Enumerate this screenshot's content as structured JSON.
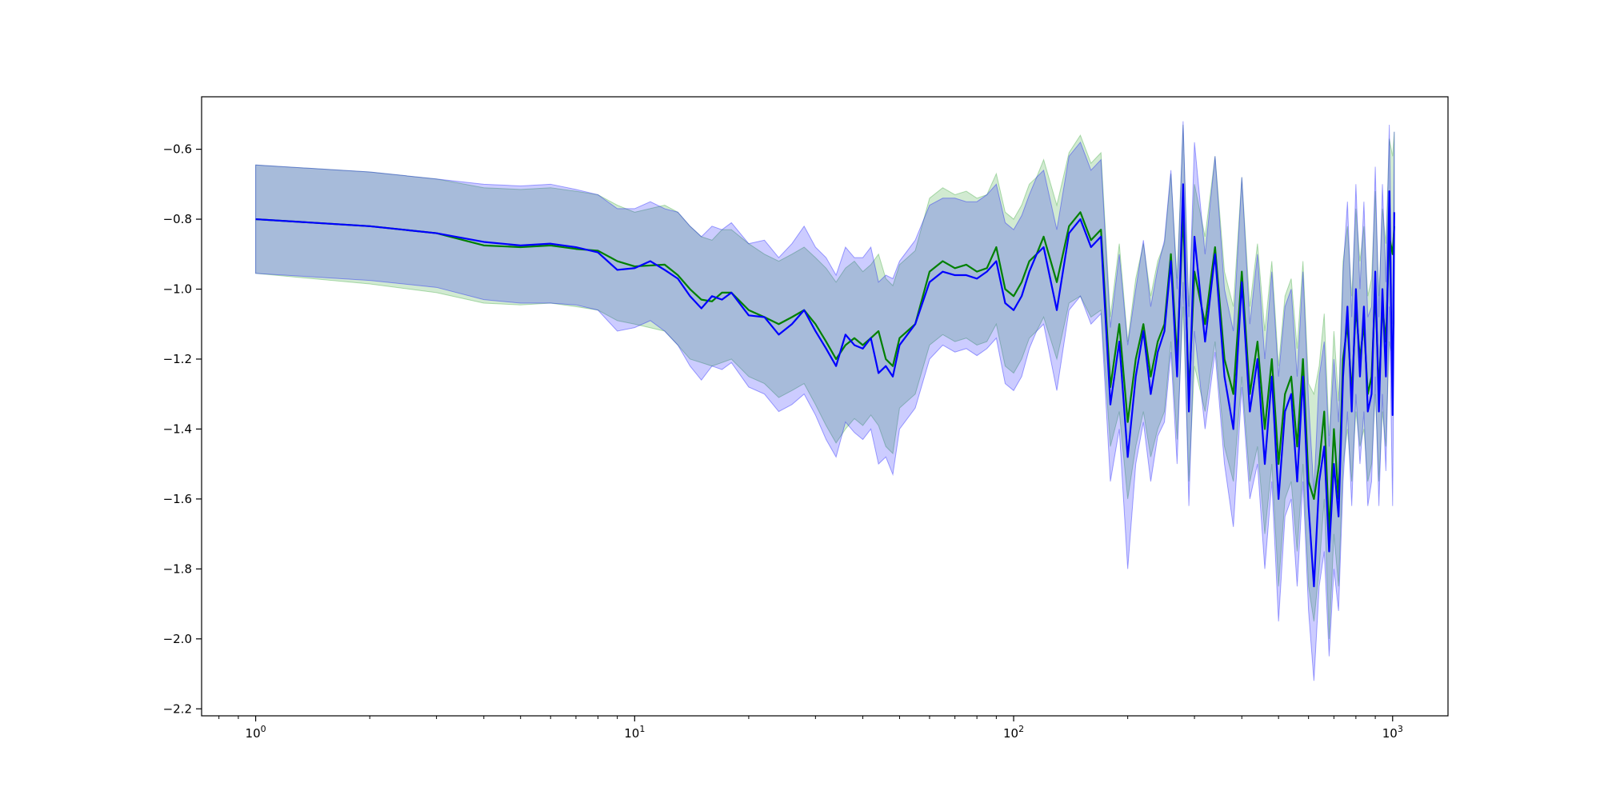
{
  "chart_data": {
    "type": "line",
    "title": "",
    "xlabel": "",
    "ylabel": "",
    "x_scale": "log",
    "xlim": [
      0.72,
      1400
    ],
    "ylim": [
      -2.22,
      -0.45
    ],
    "grid": false,
    "x_ticks": [
      {
        "value": 1,
        "base": "10",
        "exp": "0"
      },
      {
        "value": 10,
        "base": "10",
        "exp": "1"
      },
      {
        "value": 100,
        "base": "10",
        "exp": "2"
      },
      {
        "value": 1000,
        "base": "10",
        "exp": "3"
      }
    ],
    "y_ticks": [
      {
        "value": -0.6,
        "label": "−0.6"
      },
      {
        "value": -0.8,
        "label": "−0.8"
      },
      {
        "value": -1.0,
        "label": "−1.0"
      },
      {
        "value": -1.2,
        "label": "−1.2"
      },
      {
        "value": -1.4,
        "label": "−1.4"
      },
      {
        "value": -1.6,
        "label": "−1.6"
      },
      {
        "value": -1.8,
        "label": "−1.8"
      },
      {
        "value": -2.0,
        "label": "−2.0"
      },
      {
        "value": -2.2,
        "label": "−2.2"
      }
    ],
    "series": [
      {
        "color": "#008000",
        "band_color": "#2ca02c",
        "x": [
          1,
          2,
          3,
          4,
          5,
          6,
          7,
          8,
          9,
          10,
          12,
          13,
          14,
          15,
          16,
          17,
          18,
          20,
          22,
          24,
          26,
          28,
          30,
          32,
          34,
          36,
          38,
          40,
          42,
          44,
          46,
          48,
          50,
          55,
          60,
          65,
          70,
          75,
          80,
          85,
          90,
          95,
          100,
          105,
          110,
          115,
          120,
          130,
          140,
          150,
          160,
          170,
          180,
          190,
          200,
          210,
          220,
          230,
          240,
          250,
          260,
          270,
          280,
          290,
          300,
          320,
          340,
          360,
          380,
          400,
          420,
          440,
          460,
          480,
          500,
          520,
          540,
          560,
          580,
          600,
          620,
          640,
          660,
          680,
          700,
          720,
          740,
          760,
          780,
          800,
          820,
          840,
          860,
          880,
          900,
          920,
          940,
          960,
          980,
          1000,
          1010
        ],
        "mean": [
          -0.8,
          -0.82,
          -0.84,
          -0.875,
          -0.88,
          -0.875,
          -0.885,
          -0.89,
          -0.92,
          -0.935,
          -0.93,
          -0.96,
          -1.0,
          -1.03,
          -1.035,
          -1.01,
          -1.01,
          -1.06,
          -1.08,
          -1.1,
          -1.08,
          -1.06,
          -1.1,
          -1.15,
          -1.2,
          -1.16,
          -1.14,
          -1.16,
          -1.14,
          -1.12,
          -1.2,
          -1.22,
          -1.14,
          -1.1,
          -0.95,
          -0.92,
          -0.94,
          -0.93,
          -0.95,
          -0.94,
          -0.88,
          -1.0,
          -1.02,
          -0.98,
          -0.92,
          -0.9,
          -0.85,
          -0.98,
          -0.82,
          -0.78,
          -0.86,
          -0.83,
          -1.28,
          -1.1,
          -1.38,
          -1.2,
          -1.1,
          -1.25,
          -1.15,
          -1.1,
          -0.9,
          -1.2,
          -0.78,
          -1.3,
          -0.95,
          -1.1,
          -0.88,
          -1.2,
          -1.3,
          -0.95,
          -1.3,
          -1.15,
          -1.4,
          -1.2,
          -1.5,
          -1.3,
          -1.25,
          -1.45,
          -1.2,
          -1.55,
          -1.6,
          -1.5,
          -1.35,
          -1.7,
          -1.4,
          -1.6,
          -1.2,
          -1.1,
          -1.3,
          -1.05,
          -1.2,
          -1.1,
          -1.3,
          -1.25,
          -1.0,
          -1.3,
          -1.05,
          -1.15,
          -0.85,
          -0.9,
          -0.82
        ],
        "lower": [
          -0.955,
          -0.985,
          -1.01,
          -1.04,
          -1.045,
          -1.04,
          -1.05,
          -1.06,
          -1.09,
          -1.1,
          -1.12,
          -1.16,
          -1.2,
          -1.21,
          -1.22,
          -1.21,
          -1.2,
          -1.25,
          -1.27,
          -1.31,
          -1.29,
          -1.27,
          -1.33,
          -1.39,
          -1.44,
          -1.4,
          -1.37,
          -1.39,
          -1.36,
          -1.39,
          -1.45,
          -1.47,
          -1.34,
          -1.3,
          -1.16,
          -1.13,
          -1.15,
          -1.14,
          -1.16,
          -1.15,
          -1.1,
          -1.22,
          -1.24,
          -1.2,
          -1.14,
          -1.12,
          -1.08,
          -1.2,
          -1.04,
          -1.02,
          -1.08,
          -1.06,
          -1.45,
          -1.35,
          -1.6,
          -1.45,
          -1.35,
          -1.48,
          -1.4,
          -1.35,
          -1.15,
          -1.43,
          -1.05,
          -1.55,
          -1.22,
          -1.35,
          -1.15,
          -1.45,
          -1.55,
          -1.25,
          -1.55,
          -1.45,
          -1.7,
          -1.5,
          -1.85,
          -1.6,
          -1.55,
          -1.75,
          -1.5,
          -1.85,
          -1.95,
          -1.8,
          -1.6,
          -2.0,
          -1.7,
          -1.85,
          -1.5,
          -1.4,
          -1.55,
          -1.35,
          -1.45,
          -1.4,
          -1.55,
          -1.5,
          -1.3,
          -1.55,
          -1.35,
          -1.45,
          -1.15,
          -1.2,
          -1.1
        ],
        "upper": [
          -0.645,
          -0.665,
          -0.685,
          -0.71,
          -0.715,
          -0.71,
          -0.72,
          -0.73,
          -0.76,
          -0.78,
          -0.76,
          -0.78,
          -0.82,
          -0.85,
          -0.86,
          -0.83,
          -0.83,
          -0.87,
          -0.9,
          -0.92,
          -0.9,
          -0.88,
          -0.91,
          -0.94,
          -0.98,
          -0.94,
          -0.92,
          -0.95,
          -0.93,
          -0.9,
          -0.97,
          -0.99,
          -0.93,
          -0.89,
          -0.74,
          -0.71,
          -0.73,
          -0.72,
          -0.74,
          -0.73,
          -0.67,
          -0.78,
          -0.8,
          -0.76,
          -0.7,
          -0.68,
          -0.63,
          -0.76,
          -0.61,
          -0.56,
          -0.64,
          -0.61,
          -1.08,
          -0.87,
          -1.15,
          -0.97,
          -0.87,
          -1.02,
          -0.92,
          -0.87,
          -0.67,
          -0.97,
          -0.53,
          -1.05,
          -0.7,
          -0.85,
          -0.62,
          -0.95,
          -1.05,
          -0.68,
          -1.05,
          -0.87,
          -1.12,
          -0.92,
          -1.22,
          -1.02,
          -0.97,
          -1.17,
          -0.92,
          -1.27,
          -1.3,
          -1.22,
          -1.07,
          -1.42,
          -1.12,
          -1.32,
          -0.92,
          -0.82,
          -1.02,
          -0.77,
          -0.92,
          -0.82,
          -1.02,
          -0.97,
          -0.72,
          -1.02,
          -0.77,
          -0.87,
          -0.57,
          -0.62,
          -0.55
        ]
      },
      {
        "color": "#0000ff",
        "band_color": "#0000ff",
        "x": [
          1,
          2,
          3,
          4,
          5,
          6,
          7,
          8,
          9,
          10,
          11,
          12,
          13,
          14,
          15,
          16,
          17,
          18,
          20,
          22,
          24,
          26,
          28,
          30,
          32,
          34,
          36,
          38,
          40,
          42,
          44,
          46,
          48,
          50,
          55,
          60,
          65,
          70,
          75,
          80,
          85,
          90,
          95,
          100,
          105,
          110,
          115,
          120,
          130,
          140,
          150,
          160,
          170,
          180,
          190,
          200,
          210,
          220,
          230,
          240,
          250,
          260,
          270,
          280,
          290,
          300,
          320,
          340,
          360,
          380,
          400,
          420,
          440,
          460,
          480,
          500,
          520,
          540,
          560,
          580,
          600,
          620,
          640,
          660,
          680,
          700,
          720,
          740,
          760,
          780,
          800,
          820,
          840,
          860,
          880,
          900,
          920,
          940,
          960,
          980,
          1000,
          1010
        ],
        "mean": [
          -0.8,
          -0.82,
          -0.84,
          -0.865,
          -0.875,
          -0.87,
          -0.88,
          -0.895,
          -0.945,
          -0.94,
          -0.92,
          -0.945,
          -0.97,
          -1.02,
          -1.055,
          -1.02,
          -1.03,
          -1.01,
          -1.075,
          -1.08,
          -1.13,
          -1.1,
          -1.06,
          -1.12,
          -1.17,
          -1.22,
          -1.13,
          -1.16,
          -1.17,
          -1.14,
          -1.24,
          -1.22,
          -1.25,
          -1.16,
          -1.1,
          -0.98,
          -0.95,
          -0.96,
          -0.96,
          -0.97,
          -0.95,
          -0.92,
          -1.04,
          -1.06,
          -1.02,
          -0.95,
          -0.9,
          -0.88,
          -1.06,
          -0.84,
          -0.8,
          -0.88,
          -0.85,
          -1.33,
          -1.15,
          -1.48,
          -1.25,
          -1.12,
          -1.3,
          -1.18,
          -1.12,
          -0.92,
          -1.25,
          -0.7,
          -1.35,
          -0.85,
          -1.15,
          -0.9,
          -1.25,
          -1.4,
          -0.98,
          -1.35,
          -1.2,
          -1.5,
          -1.25,
          -1.6,
          -1.35,
          -1.3,
          -1.55,
          -1.25,
          -1.62,
          -1.85,
          -1.55,
          -1.45,
          -1.75,
          -1.5,
          -1.65,
          -1.25,
          -1.05,
          -1.35,
          -1.0,
          -1.25,
          -1.05,
          -1.35,
          -1.3,
          -0.95,
          -1.35,
          -1.0,
          -1.25,
          -0.72,
          -1.36,
          -0.78
        ],
        "lower": [
          -0.955,
          -0.975,
          -0.995,
          -1.03,
          -1.04,
          -1.04,
          -1.045,
          -1.06,
          -1.12,
          -1.11,
          -1.09,
          -1.12,
          -1.16,
          -1.22,
          -1.26,
          -1.22,
          -1.23,
          -1.21,
          -1.28,
          -1.3,
          -1.35,
          -1.33,
          -1.3,
          -1.36,
          -1.43,
          -1.48,
          -1.38,
          -1.41,
          -1.43,
          -1.4,
          -1.5,
          -1.48,
          -1.53,
          -1.4,
          -1.34,
          -1.2,
          -1.16,
          -1.18,
          -1.17,
          -1.19,
          -1.17,
          -1.14,
          -1.27,
          -1.29,
          -1.25,
          -1.17,
          -1.12,
          -1.1,
          -1.29,
          -1.06,
          -1.02,
          -1.1,
          -1.07,
          -1.55,
          -1.4,
          -1.8,
          -1.5,
          -1.38,
          -1.55,
          -1.42,
          -1.38,
          -1.18,
          -1.5,
          -0.98,
          -1.62,
          -1.12,
          -1.4,
          -1.18,
          -1.5,
          -1.68,
          -1.28,
          -1.6,
          -1.5,
          -1.8,
          -1.55,
          -1.95,
          -1.65,
          -1.6,
          -1.85,
          -1.55,
          -1.92,
          -2.12,
          -1.85,
          -1.75,
          -2.05,
          -1.8,
          -1.92,
          -1.55,
          -1.35,
          -1.62,
          -1.3,
          -1.5,
          -1.35,
          -1.62,
          -1.55,
          -1.25,
          -1.62,
          -1.3,
          -1.52,
          -1.05,
          -1.62,
          -1.08
        ],
        "upper": [
          -0.645,
          -0.665,
          -0.685,
          -0.7,
          -0.705,
          -0.7,
          -0.715,
          -0.73,
          -0.77,
          -0.77,
          -0.75,
          -0.77,
          -0.78,
          -0.82,
          -0.85,
          -0.82,
          -0.83,
          -0.81,
          -0.87,
          -0.86,
          -0.91,
          -0.87,
          -0.82,
          -0.88,
          -0.91,
          -0.96,
          -0.88,
          -0.91,
          -0.91,
          -0.88,
          -0.98,
          -0.96,
          -0.97,
          -0.92,
          -0.86,
          -0.76,
          -0.74,
          -0.74,
          -0.75,
          -0.75,
          -0.73,
          -0.7,
          -0.81,
          -0.83,
          -0.79,
          -0.73,
          -0.68,
          -0.66,
          -0.83,
          -0.62,
          -0.58,
          -0.66,
          -0.63,
          -1.11,
          -0.9,
          -1.16,
          -1.0,
          -0.86,
          -1.05,
          -0.94,
          -0.86,
          -0.66,
          -1.0,
          -0.52,
          -1.08,
          -0.58,
          -0.9,
          -0.62,
          -1.0,
          -1.12,
          -0.68,
          -1.1,
          -0.9,
          -1.2,
          -0.95,
          -1.25,
          -1.05,
          -1.0,
          -1.25,
          -0.95,
          -1.32,
          -1.58,
          -1.25,
          -1.15,
          -1.45,
          -1.2,
          -1.38,
          -0.95,
          -0.75,
          -1.08,
          -0.7,
          -1.0,
          -0.75,
          -1.08,
          -1.05,
          -0.65,
          -1.08,
          -0.7,
          -0.98,
          -0.53,
          -1.1,
          -0.55
        ]
      }
    ]
  }
}
